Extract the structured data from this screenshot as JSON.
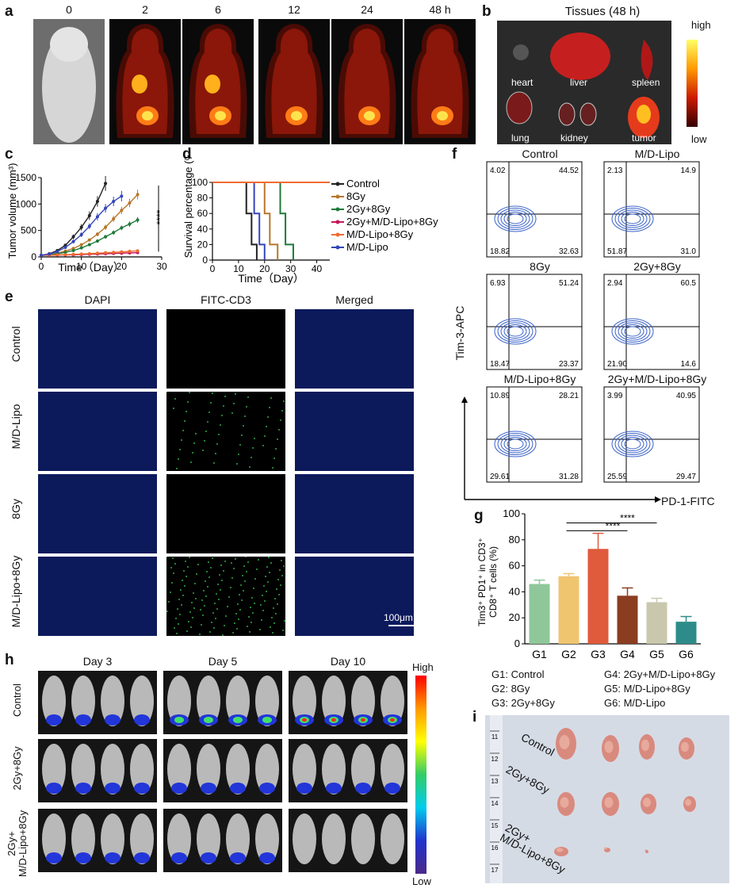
{
  "panel_a": {
    "label": "a",
    "timepoints": [
      "0",
      "2",
      "6",
      "12",
      "24",
      "48 h"
    ]
  },
  "panel_b": {
    "label": "b",
    "title": "Tissues (48 h)",
    "tissues": [
      "heart",
      "liver",
      "spleen",
      "lung",
      "kidney",
      "tumor"
    ],
    "scale_high": "high",
    "scale_low": "low"
  },
  "panel_c": {
    "label": "c",
    "ylabel": "Tumor volume (mm³)",
    "xlabel": "Time（Day）",
    "significance": "****"
  },
  "panel_d": {
    "label": "d",
    "ylabel": "Survival percentage (%)",
    "xlabel": "Time（Day）",
    "legend": [
      "Control",
      "8Gy",
      "2Gy+8Gy",
      "2Gy+M/D-Lipo+8Gy",
      "M/D-Lipo+8Gy",
      "M/D-Lipo"
    ]
  },
  "panel_e": {
    "label": "e",
    "columns": [
      "DAPI",
      "FITC-CD3",
      "Merged"
    ],
    "rows": [
      "Control",
      "M/D-Lipo",
      "8Gy",
      "M/D-Lipo+8Gy"
    ],
    "scalebar": "100μm"
  },
  "panel_f": {
    "label": "f",
    "xaxis": "PD-1-FITC",
    "yaxis": "Tim-3-APC",
    "plots": [
      {
        "title": "Control",
        "q": [
          "4.02",
          "44.52",
          "18.82",
          "32.63"
        ]
      },
      {
        "title": "M/D-Lipo",
        "q": [
          "2.13",
          "14.9",
          "51.87",
          "31.0"
        ]
      },
      {
        "title": "8Gy",
        "q": [
          "6.93",
          "51.24",
          "18.47",
          "23.37"
        ]
      },
      {
        "title": "2Gy+8Gy",
        "q": [
          "2.94",
          "60.5",
          "21.90",
          "14.6"
        ]
      },
      {
        "title": "M/D-Lipo+8Gy",
        "q": [
          "10.89",
          "28.21",
          "29.61",
          "31.28"
        ]
      },
      {
        "title": "2Gy+M/D-Lipo+8Gy",
        "q": [
          "3.99",
          "40.95",
          "25.59",
          "29.47"
        ]
      }
    ]
  },
  "panel_g": {
    "label": "g"
  },
  "group_legend": [
    "G1: Control",
    "G4: 2Gy+M/D-Lipo+8Gy",
    "G2: 8Gy",
    "G5: M/D-Lipo+8Gy",
    "G3: 2Gy+8Gy",
    "G6: M/D-Lipo"
  ],
  "panel_h": {
    "label": "h",
    "days": [
      "Day 3",
      "Day 5",
      "Day 10"
    ],
    "rows": [
      "Control",
      "2Gy+8Gy",
      "2Gy+\nM/D-Lipo+8Gy"
    ],
    "scale_high": "High",
    "scale_low": "Low"
  },
  "panel_i": {
    "label": "i",
    "rows": [
      "Control",
      "2Gy+8Gy",
      "2Gy+\nM/D-Lipo+8Gy"
    ],
    "ruler_marks": [
      "11",
      "12",
      "13",
      "14",
      "15",
      "16",
      "17"
    ]
  },
  "chart_data": [
    {
      "type": "line",
      "panel": "c",
      "xlabel": "Time（Day）",
      "ylabel": "Tumor volume (mm³)",
      "xlim": [
        0,
        30
      ],
      "ylim": [
        0,
        1500
      ],
      "xticks": [
        0,
        10,
        20,
        30
      ],
      "yticks": [
        0,
        500,
        1000,
        1500
      ],
      "series": [
        {
          "name": "Control",
          "color": "#222222",
          "x": [
            0,
            2,
            4,
            6,
            8,
            10,
            12,
            14,
            16
          ],
          "y": [
            30,
            60,
            120,
            220,
            380,
            560,
            780,
            1050,
            1390
          ],
          "err": [
            5,
            10,
            20,
            30,
            45,
            60,
            80,
            100,
            140
          ]
        },
        {
          "name": "8Gy",
          "color": "#b8762a",
          "x": [
            0,
            2,
            4,
            6,
            8,
            10,
            12,
            14,
            16,
            18,
            20,
            22,
            24
          ],
          "y": [
            30,
            45,
            70,
            110,
            160,
            230,
            320,
            430,
            560,
            720,
            880,
            1020,
            1180
          ],
          "err": [
            5,
            8,
            10,
            15,
            20,
            25,
            30,
            40,
            50,
            60,
            70,
            80,
            90
          ]
        },
        {
          "name": "2Gy+8Gy",
          "color": "#1f7a3a",
          "x": [
            0,
            2,
            4,
            6,
            8,
            10,
            12,
            14,
            16,
            18,
            20,
            22,
            24
          ],
          "y": [
            30,
            40,
            60,
            85,
            120,
            170,
            230,
            300,
            380,
            460,
            550,
            620,
            700
          ],
          "err": [
            4,
            6,
            8,
            10,
            15,
            18,
            22,
            28,
            35,
            40,
            45,
            50,
            55
          ]
        },
        {
          "name": "2Gy+M/D-Lipo+8Gy",
          "color": "#c2185b",
          "x": [
            0,
            2,
            4,
            6,
            8,
            10,
            12,
            14,
            16,
            18,
            20,
            22,
            24
          ],
          "y": [
            30,
            32,
            35,
            38,
            40,
            45,
            50,
            55,
            60,
            65,
            70,
            75,
            80
          ],
          "err": [
            3,
            3,
            4,
            4,
            5,
            5,
            6,
            6,
            7,
            7,
            8,
            8,
            9
          ]
        },
        {
          "name": "M/D-Lipo+8Gy",
          "color": "#ef6c2f",
          "x": [
            0,
            2,
            4,
            6,
            8,
            10,
            12,
            14,
            16,
            18,
            20,
            22,
            24
          ],
          "y": [
            30,
            34,
            38,
            42,
            48,
            55,
            62,
            70,
            78,
            86,
            95,
            105,
            115
          ],
          "err": [
            3,
            4,
            4,
            5,
            6,
            6,
            7,
            8,
            9,
            10,
            10,
            11,
            12
          ]
        },
        {
          "name": "M/D-Lipo",
          "color": "#3445b8",
          "x": [
            0,
            2,
            4,
            6,
            8,
            10,
            12,
            14,
            16,
            18,
            20
          ],
          "y": [
            30,
            55,
            100,
            180,
            290,
            420,
            580,
            760,
            920,
            1050,
            1150
          ],
          "err": [
            5,
            8,
            15,
            25,
            35,
            45,
            55,
            70,
            80,
            90,
            100
          ]
        }
      ]
    },
    {
      "type": "line",
      "panel": "d",
      "xlabel": "Time（Day）",
      "ylabel": "Survival percentage (%)",
      "xlim": [
        0,
        45
      ],
      "ylim": [
        0,
        100
      ],
      "xticks": [
        0,
        10,
        20,
        30,
        40
      ],
      "yticks": [
        0,
        20,
        40,
        60,
        80,
        100
      ],
      "series": [
        {
          "name": "Control",
          "color": "#222222",
          "x": [
            0,
            13,
            13,
            15,
            15,
            17,
            17
          ],
          "y": [
            100,
            100,
            60,
            60,
            20,
            20,
            0
          ]
        },
        {
          "name": "M/D-Lipo",
          "color": "#3445b8",
          "x": [
            0,
            16,
            16,
            18,
            18,
            20,
            20
          ],
          "y": [
            100,
            100,
            60,
            60,
            20,
            20,
            0
          ]
        },
        {
          "name": "8Gy",
          "color": "#b8762a",
          "x": [
            0,
            20,
            20,
            22,
            22,
            25,
            25
          ],
          "y": [
            100,
            100,
            60,
            60,
            20,
            20,
            0
          ]
        },
        {
          "name": "2Gy+8Gy",
          "color": "#1f7a3a",
          "x": [
            0,
            26,
            26,
            28,
            28,
            31,
            31
          ],
          "y": [
            100,
            100,
            60,
            60,
            20,
            20,
            0
          ]
        },
        {
          "name": "2Gy+M/D-Lipo+8Gy",
          "color": "#c2185b",
          "x": [
            0,
            45
          ],
          "y": [
            100,
            100
          ]
        },
        {
          "name": "M/D-Lipo+8Gy",
          "color": "#ef6c2f",
          "x": [
            0,
            45
          ],
          "y": [
            100,
            100
          ]
        }
      ]
    },
    {
      "type": "bar",
      "panel": "g",
      "ylabel": "Tim3⁺ PD1⁺ in CD3⁺ CD8⁺ T cells (%)",
      "categories": [
        "G1",
        "G2",
        "G3",
        "G4",
        "G5",
        "G6"
      ],
      "values": [
        46,
        52,
        73,
        37,
        32,
        17
      ],
      "errors": [
        3,
        2,
        12,
        6,
        3,
        4
      ],
      "colors": [
        "#8fc79a",
        "#f0c570",
        "#e05a3c",
        "#8b3d22",
        "#c9c8ae",
        "#2d8c89"
      ],
      "ylim": [
        0,
        100
      ],
      "yticks": [
        0,
        20,
        40,
        60,
        80,
        100
      ],
      "significance": [
        {
          "from": "G3",
          "to": "G5",
          "label": "****"
        },
        {
          "from": "G3",
          "to": "G4",
          "label": "****"
        }
      ]
    }
  ]
}
